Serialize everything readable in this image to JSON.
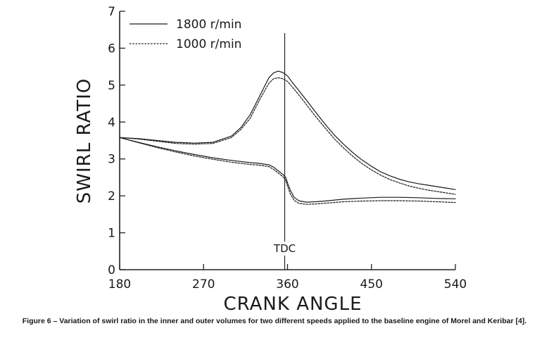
{
  "chart_data": {
    "type": "line",
    "xlabel": "CRANK ANGLE",
    "ylabel": "SWIRL RATIO",
    "xlim": [
      180,
      540
    ],
    "ylim": [
      0,
      7
    ],
    "x_ticks": [
      180,
      270,
      360,
      450,
      540
    ],
    "y_ticks": [
      0,
      1,
      2,
      3,
      4,
      5,
      6,
      7
    ],
    "legend": {
      "placement": "top-left",
      "entries": [
        {
          "label": "1800 r/min",
          "style": "solid"
        },
        {
          "label": "1000 r/min",
          "style": "dashed"
        }
      ]
    },
    "annotations": [
      {
        "text": "TDC",
        "x": 357,
        "type": "vertical-line"
      }
    ],
    "series": [
      {
        "style": "solid",
        "volume": "outer",
        "x": [
          180,
          200,
          220,
          240,
          260,
          280,
          300,
          310,
          320,
          330,
          340,
          345,
          350,
          355,
          360,
          365,
          370,
          380,
          390,
          400,
          410,
          420,
          430,
          440,
          450,
          460,
          470,
          480,
          490,
          500,
          510,
          520,
          530,
          540
        ],
        "y": [
          3.58,
          3.55,
          3.5,
          3.45,
          3.43,
          3.45,
          3.62,
          3.85,
          4.2,
          4.7,
          5.2,
          5.33,
          5.38,
          5.34,
          5.25,
          5.08,
          4.92,
          4.6,
          4.27,
          3.95,
          3.65,
          3.4,
          3.17,
          2.97,
          2.8,
          2.65,
          2.54,
          2.45,
          2.38,
          2.33,
          2.29,
          2.25,
          2.21,
          2.17
        ]
      },
      {
        "style": "dashed",
        "volume": "outer",
        "x": [
          180,
          200,
          220,
          240,
          260,
          280,
          300,
          310,
          320,
          330,
          340,
          345,
          350,
          355,
          360,
          365,
          370,
          380,
          390,
          400,
          410,
          420,
          430,
          440,
          450,
          460,
          470,
          480,
          490,
          500,
          510,
          520,
          530,
          540
        ],
        "y": [
          3.58,
          3.54,
          3.48,
          3.42,
          3.4,
          3.42,
          3.58,
          3.8,
          4.1,
          4.6,
          5.05,
          5.17,
          5.2,
          5.17,
          5.1,
          4.95,
          4.8,
          4.48,
          4.15,
          3.85,
          3.55,
          3.3,
          3.07,
          2.87,
          2.7,
          2.56,
          2.44,
          2.35,
          2.27,
          2.21,
          2.16,
          2.12,
          2.08,
          2.04
        ]
      },
      {
        "style": "solid",
        "volume": "inner",
        "x": [
          180,
          200,
          220,
          240,
          260,
          280,
          300,
          320,
          330,
          340,
          345,
          350,
          355,
          358,
          360,
          363,
          367,
          372,
          380,
          390,
          400,
          420,
          440,
          460,
          480,
          500,
          520,
          540
        ],
        "y": [
          3.58,
          3.45,
          3.33,
          3.22,
          3.12,
          3.03,
          2.96,
          2.9,
          2.88,
          2.84,
          2.78,
          2.68,
          2.58,
          2.5,
          2.35,
          2.15,
          1.96,
          1.87,
          1.83,
          1.84,
          1.86,
          1.91,
          1.94,
          1.96,
          1.96,
          1.95,
          1.93,
          1.92
        ]
      },
      {
        "style": "dashed",
        "volume": "inner",
        "x": [
          180,
          200,
          220,
          240,
          260,
          280,
          300,
          320,
          330,
          340,
          345,
          350,
          355,
          358,
          360,
          363,
          367,
          372,
          380,
          390,
          400,
          420,
          440,
          460,
          480,
          500,
          520,
          540
        ],
        "y": [
          3.58,
          3.44,
          3.31,
          3.19,
          3.08,
          2.99,
          2.91,
          2.85,
          2.83,
          2.79,
          2.72,
          2.62,
          2.52,
          2.42,
          2.27,
          2.05,
          1.88,
          1.8,
          1.77,
          1.78,
          1.8,
          1.84,
          1.86,
          1.87,
          1.87,
          1.86,
          1.84,
          1.82
        ]
      }
    ]
  },
  "caption": "Figure 6 – Variation of swirl ratio in the inner and outer volumes for two different speeds applied to the baseline engine of Morel and Keribar [4]."
}
